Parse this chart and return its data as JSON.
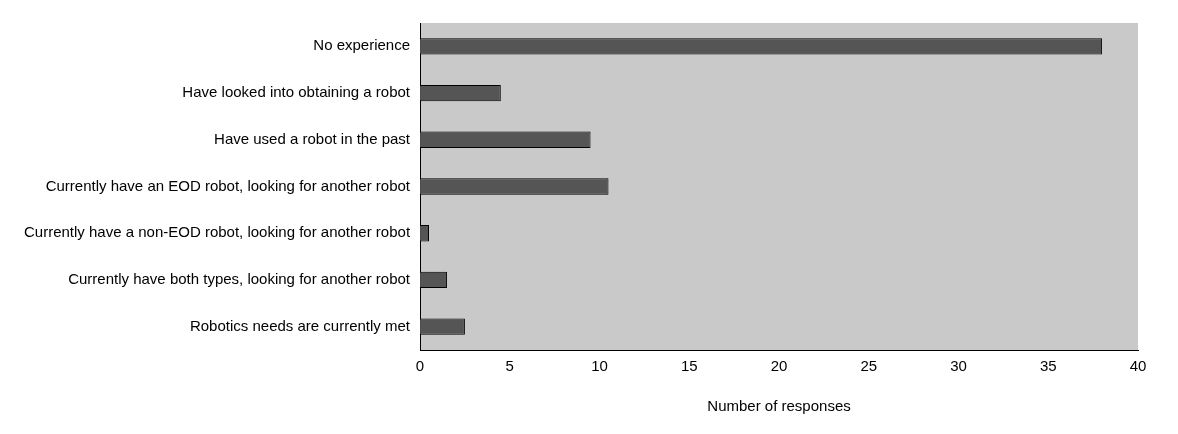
{
  "chart_data": {
    "type": "bar",
    "orientation": "horizontal",
    "xlabel": "Number of responses",
    "categories": [
      "No experience",
      "Have looked into obtaining a robot",
      "Have used a robot in the past",
      "Currently have an EOD robot, looking for another robot",
      "Currently have a non-EOD robot, looking for another robot",
      "Currently have both types, looking for another robot",
      "Robotics needs are currently met"
    ],
    "values": [
      38,
      4.5,
      9.5,
      10.5,
      0.5,
      1.5,
      2.5
    ],
    "color": "#555555",
    "xlim": [
      0,
      40
    ],
    "xticks": [
      0,
      5,
      10,
      15,
      20,
      25,
      30,
      35,
      40
    ],
    "grid": false,
    "legend": false
  }
}
